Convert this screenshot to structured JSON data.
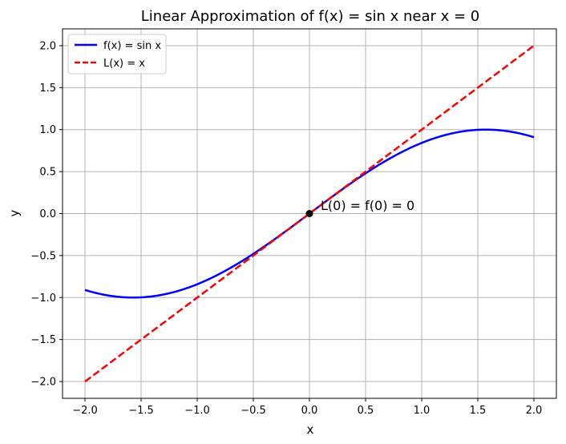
{
  "chart_data": {
    "type": "line",
    "title": "Linear Approximation of f(x) = sin x near x = 0",
    "xlabel": "x",
    "ylabel": "y",
    "xlim": [
      -2.2,
      2.2
    ],
    "ylim": [
      -2.2,
      2.2
    ],
    "xticks": [
      -2.0,
      -1.5,
      -1.0,
      -0.5,
      0.0,
      0.5,
      1.0,
      1.5,
      2.0
    ],
    "yticks": [
      -2.0,
      -1.5,
      -1.0,
      -0.5,
      0.0,
      0.5,
      1.0,
      1.5,
      2.0
    ],
    "xtick_labels": [
      "−2.0",
      "−1.5",
      "−1.0",
      "−0.5",
      "0.0",
      "0.5",
      "1.0",
      "1.5",
      "2.0"
    ],
    "ytick_labels": [
      "−2.0",
      "−1.5",
      "−1.0",
      "−0.5",
      "0.0",
      "0.5",
      "1.0",
      "1.5",
      "2.0"
    ],
    "grid": true,
    "legend_position": "top-left",
    "series": [
      {
        "name": "f(x) = sin x",
        "color": "#0000ff",
        "style": "solid",
        "function": "sin",
        "domain": [
          -2,
          2
        ]
      },
      {
        "name": "L(x) = x",
        "color": "#ff0000",
        "style": "dashed",
        "function": "identity",
        "domain": [
          -2,
          2
        ]
      }
    ],
    "points": [
      {
        "x": 0,
        "y": 0,
        "color": "#000000"
      }
    ],
    "annotations": [
      {
        "text": "L(0) = f(0) = 0",
        "x": 0.1,
        "y": 0.1
      }
    ]
  }
}
